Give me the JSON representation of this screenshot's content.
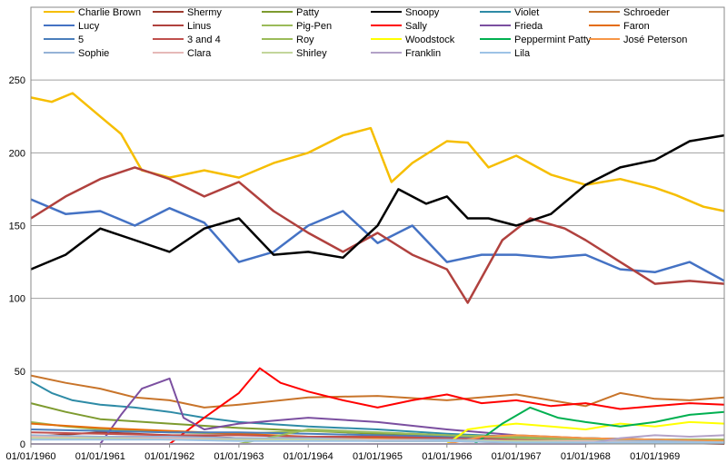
{
  "chart_data": {
    "type": "line",
    "title": "",
    "xlabel": "",
    "ylabel": "",
    "ylim": [
      0,
      300
    ],
    "xlim": [
      1960.0,
      1970.0
    ],
    "y_ticks": [
      0,
      50,
      100,
      150,
      200,
      250
    ],
    "x_ticks": [
      {
        "label": "01/01/1960",
        "x": 1960
      },
      {
        "label": "01/01/1961",
        "x": 1961
      },
      {
        "label": "01/01/1962",
        "x": 1962
      },
      {
        "label": "01/01/1963",
        "x": 1963
      },
      {
        "label": "01/01/1964",
        "x": 1964
      },
      {
        "label": "01/01/1965",
        "x": 1965
      },
      {
        "label": "01/01/1966",
        "x": 1966
      },
      {
        "label": "01/01/1967",
        "x": 1967
      },
      {
        "label": "01/01/1968",
        "x": 1968
      },
      {
        "label": "01/01/1969",
        "x": 1969
      }
    ],
    "grid": "horizontal",
    "legend_position": "top",
    "series": [
      {
        "name": "Charlie Brown",
        "color": "#F6BE00",
        "x": [
          1960,
          1960.3,
          1960.6,
          1961,
          1961.3,
          1961.6,
          1962,
          1962.5,
          1963,
          1963.5,
          1964,
          1964.5,
          1964.9,
          1965.2,
          1965.5,
          1966,
          1966.3,
          1966.6,
          1967,
          1967.5,
          1968,
          1968.5,
          1969,
          1969.3,
          1969.7,
          1970
        ],
        "y": [
          238,
          235,
          241,
          225,
          213,
          188,
          183,
          188,
          183,
          193,
          200,
          212,
          217,
          180,
          193,
          208,
          207,
          190,
          198,
          185,
          178,
          182,
          176,
          171,
          163,
          160
        ]
      },
      {
        "name": "Shermy",
        "color": "#9E3A2E",
        "x": [
          1960,
          1961,
          1962,
          1963,
          1964,
          1965,
          1966,
          1967,
          1968,
          1969,
          1970
        ],
        "y": [
          5,
          8,
          6,
          4,
          3,
          2,
          2,
          1,
          1,
          1,
          0
        ]
      },
      {
        "name": "Patty",
        "color": "#7E9B2F",
        "x": [
          1960,
          1960.5,
          1961,
          1962,
          1963,
          1964,
          1965,
          1966,
          1967,
          1968,
          1969,
          1970
        ],
        "y": [
          28,
          22,
          17,
          14,
          11,
          9,
          7,
          6,
          5,
          4,
          3,
          3
        ]
      },
      {
        "name": "Snoopy",
        "color": "#000000",
        "x": [
          1960,
          1960.5,
          1961,
          1961.5,
          1962,
          1962.5,
          1963,
          1963.5,
          1964,
          1964.5,
          1965,
          1965.3,
          1965.7,
          1966,
          1966.3,
          1966.6,
          1967,
          1967.5,
          1968,
          1968.5,
          1969,
          1969.5,
          1970
        ],
        "y": [
          120,
          130,
          148,
          140,
          132,
          148,
          155,
          130,
          132,
          128,
          150,
          175,
          165,
          170,
          155,
          155,
          150,
          158,
          178,
          190,
          195,
          208,
          212
        ]
      },
      {
        "name": "Violet",
        "color": "#2E8BA6",
        "x": [
          1960,
          1960.3,
          1960.6,
          1961,
          1961.5,
          1962,
          1962.5,
          1963,
          1964,
          1965,
          1966,
          1967,
          1968,
          1969,
          1970
        ],
        "y": [
          43,
          35,
          30,
          27,
          25,
          22,
          18,
          15,
          12,
          10,
          7,
          5,
          4,
          3,
          2
        ]
      },
      {
        "name": "Schroeder",
        "color": "#C8742A",
        "x": [
          1960,
          1960.5,
          1961,
          1961.5,
          1962,
          1962.5,
          1963,
          1964,
          1965,
          1966,
          1967,
          1968,
          1968.5,
          1969,
          1969.5,
          1970
        ],
        "y": [
          47,
          42,
          38,
          32,
          30,
          25,
          27,
          32,
          33,
          30,
          34,
          26,
          35,
          31,
          30,
          32
        ]
      },
      {
        "name": "Lucy",
        "color": "#4472C4",
        "x": [
          1960,
          1960.5,
          1961,
          1961.5,
          1962,
          1962.5,
          1963,
          1963.5,
          1964,
          1964.5,
          1965,
          1965.5,
          1966,
          1966.5,
          1967,
          1967.5,
          1968,
          1968.5,
          1969,
          1969.5,
          1970
        ],
        "y": [
          168,
          158,
          160,
          150,
          162,
          152,
          125,
          132,
          150,
          160,
          138,
          150,
          125,
          130,
          130,
          128,
          130,
          120,
          118,
          125,
          112
        ]
      },
      {
        "name": "Linus",
        "color": "#B0413E",
        "x": [
          1960,
          1960.5,
          1961,
          1961.5,
          1962,
          1962.5,
          1963,
          1963.5,
          1964,
          1964.5,
          1965,
          1965.5,
          1966,
          1966.3,
          1966.8,
          1967.2,
          1967.7,
          1968,
          1968.5,
          1969,
          1969.5,
          1970
        ],
        "y": [
          155,
          170,
          182,
          190,
          182,
          170,
          180,
          160,
          145,
          132,
          145,
          130,
          120,
          97,
          140,
          155,
          148,
          140,
          125,
          110,
          112,
          110
        ]
      },
      {
        "name": "Pig-Pen",
        "color": "#9BBB59",
        "x": [
          1960,
          1960.5,
          1961,
          1962,
          1963,
          1964,
          1965,
          1966,
          1967,
          1968,
          1969,
          1970
        ],
        "y": [
          15,
          12,
          10,
          8,
          7,
          9,
          8,
          6,
          5,
          4,
          3,
          3
        ]
      },
      {
        "name": "Sally",
        "color": "#FF0000",
        "x": [
          1960,
          1960.5,
          1961,
          1961.5,
          1962,
          1962.5,
          1963,
          1963.3,
          1963.6,
          1964,
          1964.5,
          1965,
          1965.5,
          1966,
          1966.5,
          1967,
          1967.5,
          1968,
          1968.5,
          1969,
          1969.5,
          1970
        ],
        "y": [
          0,
          0,
          0,
          0,
          0,
          18,
          35,
          52,
          42,
          36,
          30,
          25,
          30,
          34,
          28,
          30,
          26,
          28,
          24,
          26,
          28,
          27
        ]
      },
      {
        "name": "Frieda",
        "color": "#7B4FA0",
        "x": [
          1960,
          1961,
          1961.3,
          1961.6,
          1962,
          1962.2,
          1962.5,
          1963,
          1964,
          1965,
          1966,
          1967,
          1968,
          1969,
          1970
        ],
        "y": [
          0,
          0,
          20,
          38,
          45,
          18,
          10,
          14,
          18,
          15,
          10,
          6,
          4,
          3,
          2
        ]
      },
      {
        "name": "Faron",
        "color": "#E46C0A",
        "x": [
          1960,
          1961,
          1962,
          1963,
          1964,
          1965,
          1966,
          1967,
          1968,
          1969,
          1970
        ],
        "y": [
          14,
          11,
          9,
          7,
          5,
          4,
          3,
          2,
          2,
          1,
          1
        ]
      },
      {
        "name": "5",
        "color": "#4A7EBB",
        "x": [
          1960,
          1961,
          1962,
          1963,
          1964,
          1965,
          1966,
          1967,
          1968,
          1969,
          1970
        ],
        "y": [
          10,
          9,
          8,
          8,
          7,
          6,
          5,
          4,
          3,
          3,
          2
        ]
      },
      {
        "name": "3 and 4",
        "color": "#C0504D",
        "x": [
          1960,
          1961,
          1962,
          1963,
          1964,
          1965,
          1966,
          1967,
          1968,
          1969,
          1970
        ],
        "y": [
          8,
          7,
          6,
          6,
          5,
          5,
          4,
          3,
          3,
          2,
          2
        ]
      },
      {
        "name": "Roy",
        "color": "#9BBB59",
        "x": [
          1960,
          1961,
          1962,
          1963,
          1964,
          1965,
          1966,
          1967,
          1968,
          1969,
          1970
        ],
        "y": [
          0,
          0,
          0,
          0,
          10,
          8,
          6,
          4,
          3,
          2,
          2
        ]
      },
      {
        "name": "Woodstock",
        "color": "#FFFF00",
        "x": [
          1960,
          1966,
          1966.3,
          1966.6,
          1967,
          1967.5,
          1968,
          1968.5,
          1969,
          1969.5,
          1970
        ],
        "y": [
          0,
          0,
          10,
          12,
          14,
          12,
          10,
          14,
          12,
          15,
          14
        ]
      },
      {
        "name": "Peppermint Patty",
        "color": "#00B050",
        "x": [
          1960,
          1966,
          1966.4,
          1966.8,
          1967.2,
          1967.6,
          1968,
          1968.5,
          1969,
          1969.5,
          1970
        ],
        "y": [
          0,
          0,
          0,
          14,
          25,
          18,
          15,
          12,
          15,
          20,
          22
        ]
      },
      {
        "name": "José Peterson",
        "color": "#F79646",
        "x": [
          1960,
          1966,
          1966.5,
          1967,
          1968,
          1969,
          1970
        ],
        "y": [
          0,
          0,
          5,
          6,
          4,
          3,
          2
        ]
      },
      {
        "name": "Sophie",
        "color": "#95B3D7",
        "x": [
          1960,
          1961,
          1962,
          1963,
          1964,
          1965,
          1966,
          1967,
          1968,
          1969,
          1970
        ],
        "y": [
          6,
          5,
          5,
          4,
          4,
          3,
          3,
          2,
          2,
          2,
          1
        ]
      },
      {
        "name": "Clara",
        "color": "#E6B9B8",
        "x": [
          1960,
          1961,
          1962,
          1963,
          1964,
          1965,
          1966,
          1967,
          1968,
          1969,
          1970
        ],
        "y": [
          5,
          4,
          4,
          3,
          3,
          3,
          2,
          2,
          2,
          1,
          1
        ]
      },
      {
        "name": "Shirley",
        "color": "#C3D69B",
        "x": [
          1960,
          1961,
          1962,
          1963,
          1964,
          1965,
          1966,
          1967,
          1968,
          1969,
          1970
        ],
        "y": [
          4,
          4,
          3,
          3,
          3,
          2,
          2,
          2,
          1,
          1,
          1
        ]
      },
      {
        "name": "Franklin",
        "color": "#B3A2C7",
        "x": [
          1960,
          1968,
          1968.5,
          1969,
          1969.5,
          1970
        ],
        "y": [
          0,
          0,
          4,
          6,
          5,
          6
        ]
      },
      {
        "name": "Lila",
        "color": "#9DC3E6",
        "x": [
          1960,
          1961,
          1962,
          1963,
          1964,
          1965,
          1966,
          1967,
          1968,
          1969,
          1970
        ],
        "y": [
          3,
          3,
          3,
          2,
          2,
          2,
          2,
          1,
          1,
          1,
          1
        ]
      }
    ]
  }
}
